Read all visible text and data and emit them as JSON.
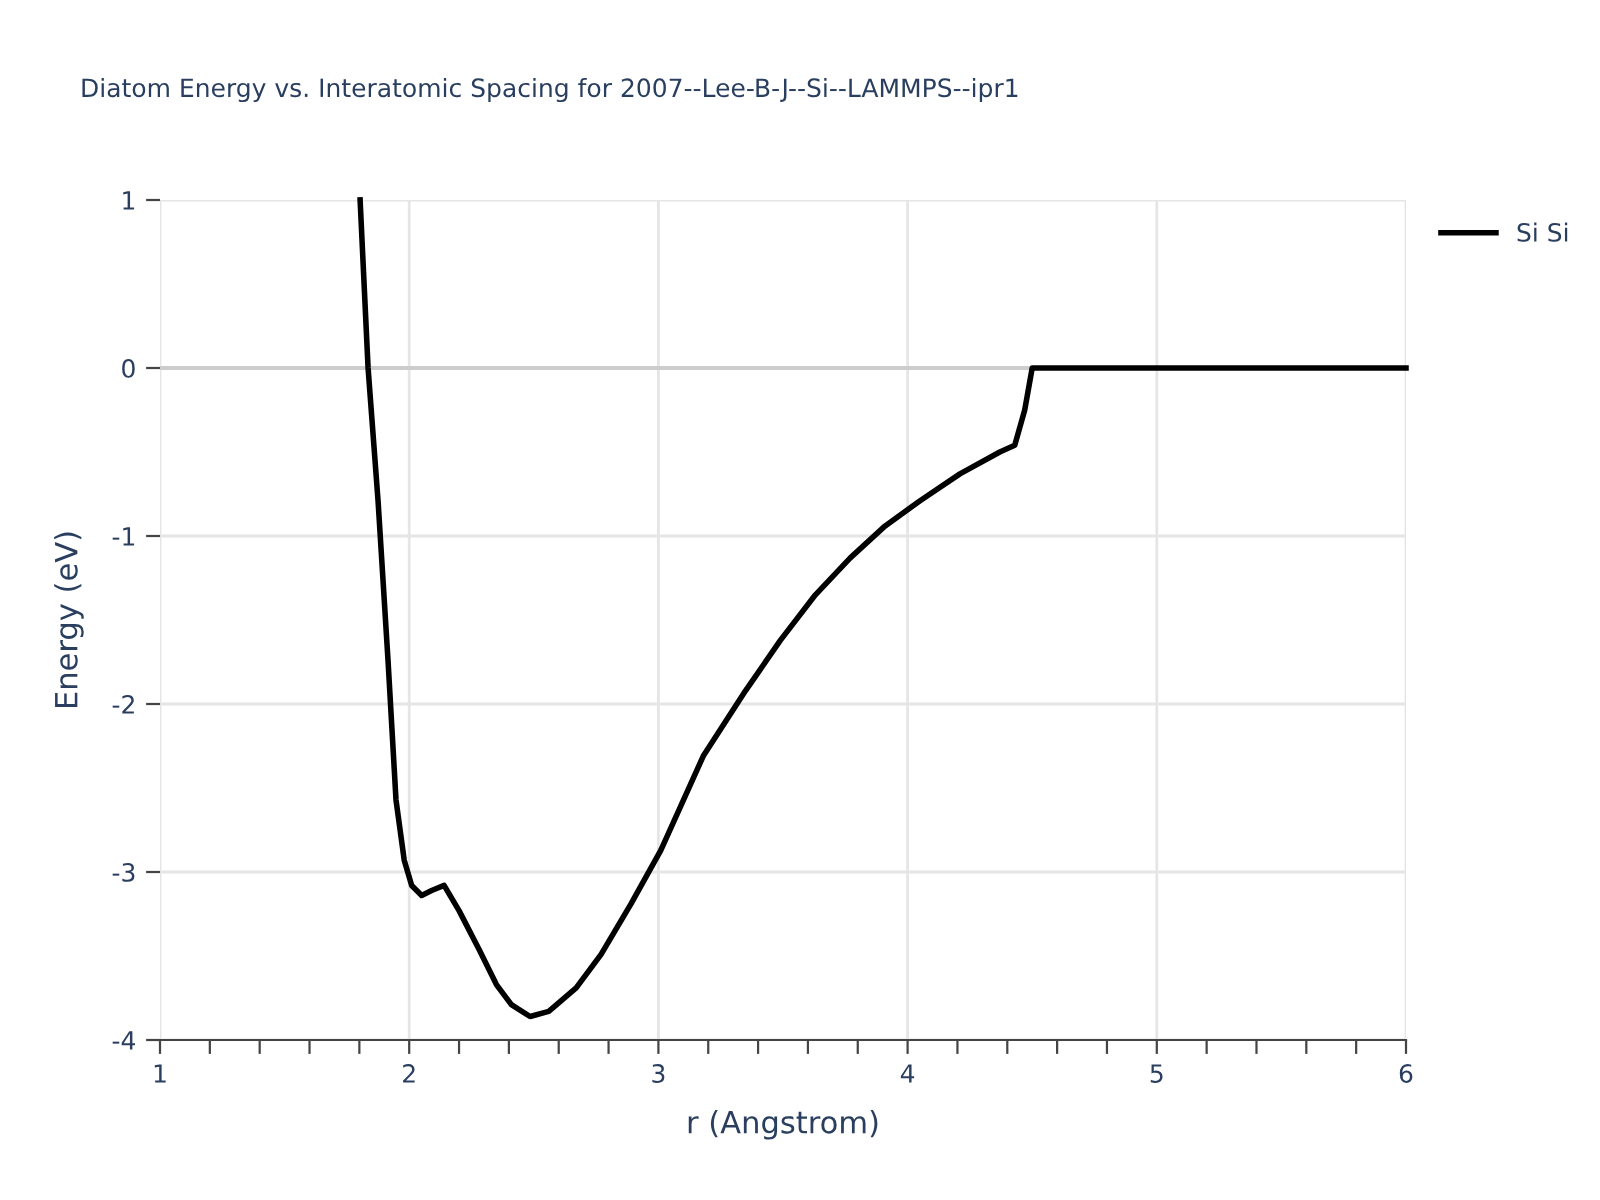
{
  "chart_data": {
    "type": "line",
    "title": "Diatom Energy vs. Interatomic Spacing for 2007--Lee-B-J--Si--LAMMPS--ipr1",
    "xlabel": "r (Angstrom)",
    "ylabel": "Energy (eV)",
    "series": [
      {
        "name": "Si Si",
        "color": "#000000",
        "x": [
          1.803,
          1.835,
          1.875,
          1.915,
          1.947,
          1.98,
          2.01,
          2.05,
          2.09,
          2.14,
          2.2,
          2.28,
          2.35,
          2.41,
          2.485,
          2.56,
          2.67,
          2.77,
          2.89,
          3.01,
          3.18,
          3.35,
          3.49,
          3.63,
          3.77,
          3.91,
          4.05,
          4.21,
          4.37,
          4.43,
          4.47,
          4.5,
          6
        ],
        "values": [
          1.0,
          0,
          -0.79,
          -1.74,
          -2.57,
          -2.93,
          -3.08,
          -3.14,
          -3.11,
          -3.08,
          -3.23,
          -3.46,
          -3.67,
          -3.79,
          -3.86,
          -3.83,
          -3.69,
          -3.49,
          -3.19,
          -2.87,
          -2.31,
          -1.92,
          -1.62,
          -1.35,
          -1.13,
          -0.94,
          -0.79,
          -0.63,
          -0.5,
          -0.46,
          -0.25,
          0,
          0
        ]
      }
    ],
    "xlim": [
      1,
      6
    ],
    "ylim": [
      -4,
      1
    ],
    "xticks": [
      1,
      {
        "value": 1.2,
        "label": null
      },
      {
        "value": 1.4,
        "label": null
      },
      {
        "value": 1.6,
        "label": null
      },
      {
        "value": 1.8,
        "label": null
      },
      2,
      {
        "value": 2.2,
        "label": null
      },
      {
        "value": 2.4,
        "label": null
      },
      {
        "value": 2.6,
        "label": null
      },
      {
        "value": 2.8,
        "label": null
      },
      3,
      {
        "value": 3.2,
        "label": null
      },
      {
        "value": 3.4,
        "label": null
      },
      {
        "value": 3.6,
        "label": null
      },
      {
        "value": 3.8,
        "label": null
      },
      4,
      {
        "value": 4.2,
        "label": null
      },
      {
        "value": 4.4,
        "label": null
      },
      {
        "value": 4.6,
        "label": null
      },
      {
        "value": 4.8,
        "label": null
      },
      5,
      {
        "value": 5.2,
        "label": null
      },
      {
        "value": 5.4,
        "label": null
      },
      {
        "value": 5.6,
        "label": null
      },
      {
        "value": 5.8,
        "label": null
      },
      6
    ],
    "yticks": [
      -4,
      -3,
      -2,
      -1,
      0,
      1
    ],
    "ref_lines": [
      {
        "axis": "y",
        "value": 0,
        "color": "#cccccc"
      }
    ],
    "grid": true,
    "legend": "top right",
    "marker": "none",
    "line_style": "solid"
  }
}
